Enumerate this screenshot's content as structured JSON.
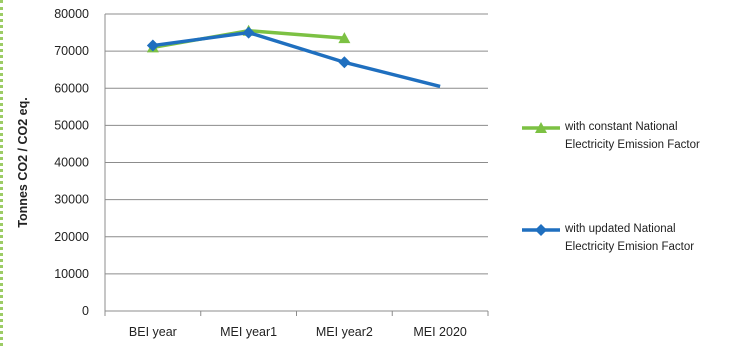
{
  "chart_data": {
    "type": "line",
    "title": "",
    "xlabel": "",
    "ylabel": "Tonnes CO2 / CO2 eq.",
    "categories": [
      "BEI year",
      "MEI year1",
      "MEI year2",
      "MEI 2020"
    ],
    "ylim": [
      0,
      80000
    ],
    "yticks": [
      0,
      10000,
      20000,
      30000,
      40000,
      50000,
      60000,
      70000,
      80000
    ],
    "grid": true,
    "legend_position": "right",
    "series": [
      {
        "name": "with constant National Electricity Emission Factor",
        "legend_lines": [
          "with constant National",
          "Electricity Emission Factor"
        ],
        "color": "#7cc143",
        "marker": "triangle",
        "values": [
          71000,
          75500,
          73500,
          null
        ]
      },
      {
        "name": "with updated National Electricity Emision Factor",
        "legend_lines": [
          "with updated National",
          "Electricity Emision Factor"
        ],
        "color": "#1f6fbf",
        "marker": "diamond",
        "values": [
          71500,
          75000,
          67000,
          60500
        ]
      }
    ]
  }
}
